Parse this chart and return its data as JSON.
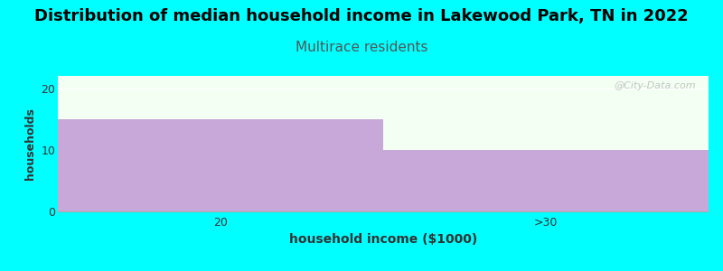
{
  "title": "Distribution of median household income in Lakewood Park, TN in 2022",
  "subtitle": "Multirace residents",
  "xlabel": "household income ($1000)",
  "ylabel": "households",
  "categories": [
    "20",
    ">30"
  ],
  "values": [
    15,
    10
  ],
  "bar_color": "#C8A8D8",
  "background_color": "#00FFFF",
  "plot_bg_color": "#F2FFF2",
  "title_fontsize": 13,
  "subtitle_fontsize": 11,
  "subtitle_color": "#555555",
  "xlabel_fontsize": 10,
  "ylabel_fontsize": 9,
  "tick_fontsize": 9,
  "ylim": [
    0,
    22
  ],
  "yticks": [
    0,
    10,
    20
  ],
  "watermark": "@City-Data.com"
}
